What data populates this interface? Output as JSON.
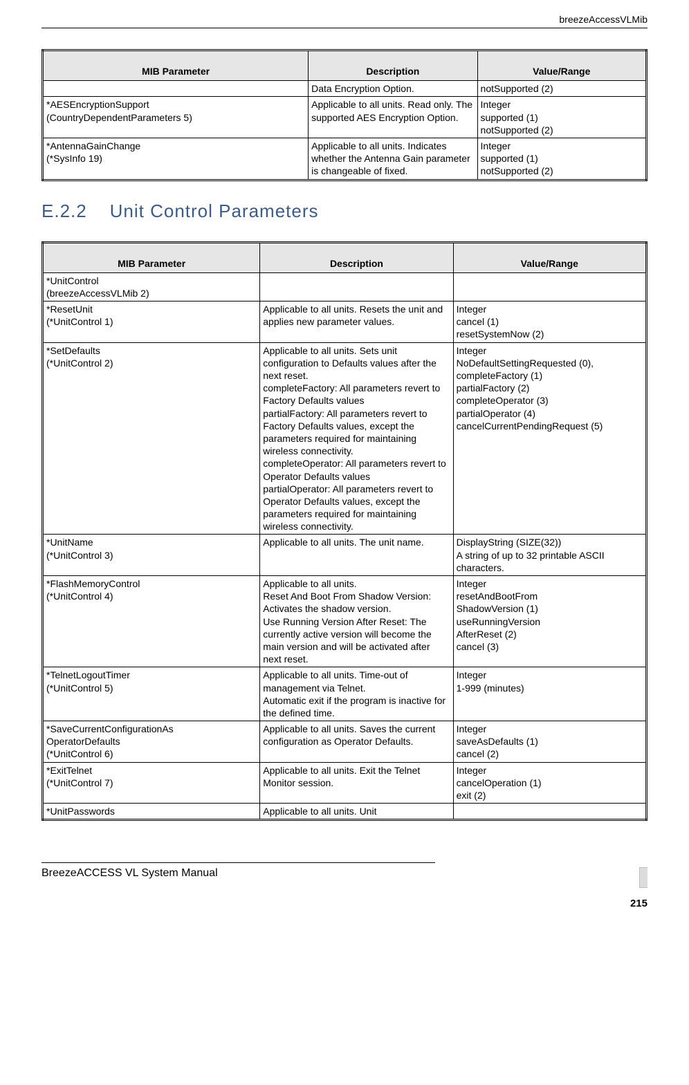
{
  "header": {
    "right": "breezeAccessVLMib"
  },
  "table1": {
    "headers": [
      "MIB Parameter",
      "Description",
      "Value/Range"
    ],
    "rows": [
      {
        "param": "",
        "desc": "Data Encryption Option.",
        "value": "notSupported (2)"
      },
      {
        "param": "*AESEncryptionSupport\n(CountryDependentParameters 5)",
        "desc": "Applicable to all units. Read only. The supported AES Encryption Option.",
        "value": "Integer\nsupported (1)\nnotSupported (2)"
      },
      {
        "param": "*AntennaGainChange\n(*SysInfo 19)",
        "desc": "Applicable to all units. Indicates whether the Antenna Gain parameter is changeable of fixed.",
        "value": "Integer\nsupported (1)\nnotSupported (2)"
      }
    ]
  },
  "section": {
    "number": "E.2.2",
    "title": "Unit Control Parameters"
  },
  "table2": {
    "headers": [
      "MIB Parameter",
      "Description",
      "Value/Range"
    ],
    "rows": [
      {
        "param": "*UnitControl\n(breezeAccessVLMib 2)",
        "desc": "",
        "value": ""
      },
      {
        "param": "*ResetUnit\n(*UnitControl 1)",
        "desc": "Applicable to all units. Resets the unit and applies new parameter values.",
        "value": "Integer\ncancel (1)\nresetSystemNow (2)"
      },
      {
        "param": "*SetDefaults\n(*UnitControl 2)",
        "desc": "Applicable to all units. Sets unit configuration to Defaults values after the next reset.\ncompleteFactory: All parameters revert to Factory Defaults values\npartialFactory: All parameters revert to Factory Defaults values, except the parameters required for maintaining wireless connectivity.\ncompleteOperator: All parameters revert to Operator Defaults values\npartialOperator: All parameters revert to Operator Defaults values, except the parameters required for maintaining wireless connectivity.",
        "value": "Integer\nNoDefaultSettingRequested (0),\ncompleteFactory (1)\npartialFactory (2)\ncompleteOperator (3)\npartialOperator (4)\ncancelCurrentPendingRequest (5)"
      },
      {
        "param": "*UnitName\n(*UnitControl 3)",
        "desc": "Applicable to all units. The unit name.",
        "value": "DisplayString (SIZE(32))\nA string of up to 32 printable ASCII characters."
      },
      {
        "param": "*FlashMemoryControl\n(*UnitControl 4)",
        "desc": "Applicable to all units.\nReset And Boot From Shadow Version: Activates the shadow version.\nUse Running Version After Reset: The currently active version will become the main version and will be activated after next reset.",
        "value": "Integer\nresetAndBootFrom\nShadowVersion (1)\nuseRunningVersion\nAfterReset (2)\ncancel (3)"
      },
      {
        "param": "*TelnetLogoutTimer\n(*UnitControl 5)",
        "desc": "Applicable to all units. Time-out of management via Telnet.\nAutomatic exit if the program is inactive for the defined time.",
        "value": "Integer\n1-999 (minutes)"
      },
      {
        "param": "*SaveCurrentConfigurationAs\nOperatorDefaults\n(*UnitControl 6)",
        "desc": "Applicable to all units. Saves the current configuration as Operator Defaults.",
        "value": "Integer\nsaveAsDefaults (1)\ncancel (2)"
      },
      {
        "param": "*ExitTelnet\n(*UnitControl 7)",
        "desc": "Applicable to all units. Exit the Telnet Monitor session.",
        "value": " Integer\ncancelOperation (1)\nexit (2)"
      },
      {
        "param": "*UnitPasswords",
        "desc": "Applicable to all units. Unit",
        "value": ""
      }
    ]
  },
  "footer": {
    "left": "BreezeACCESS VL System Manual",
    "page": "215"
  }
}
